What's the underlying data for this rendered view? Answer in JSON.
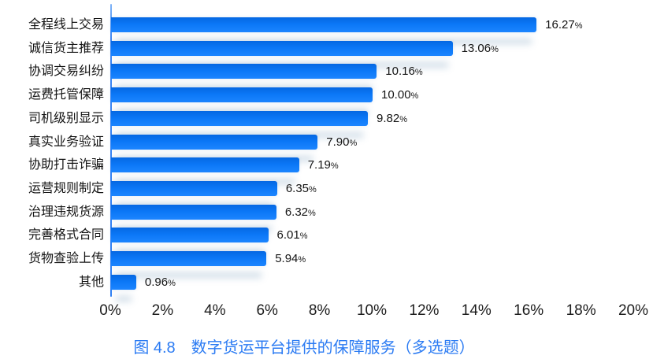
{
  "chart_data": {
    "type": "bar",
    "orientation": "horizontal",
    "title": "图 4.8　数字货运平台提供的保障服务（多选题）",
    "categories": [
      "全程线上交易",
      "诚信货主推荐",
      "协调交易纠纷",
      "运费托管保障",
      "司机级别显示",
      "真实业务验证",
      "协助打击诈骗",
      "运营规则制定",
      "治理违规货源",
      "完善格式合同",
      "货物查验上传",
      "其他"
    ],
    "values": [
      16.27,
      13.06,
      10.16,
      10.0,
      9.82,
      7.9,
      7.19,
      6.35,
      6.32,
      6.01,
      5.94,
      0.96
    ],
    "value_labels": [
      "16.27",
      "13.06",
      "10.16",
      "10.00",
      "9.82",
      "7.90",
      "7.19",
      "6.35",
      "6.32",
      "6.01",
      "5.94",
      "0.96"
    ],
    "unit": "%",
    "x_ticks": [
      "0%",
      "2%",
      "4%",
      "6%",
      "8%",
      "10%",
      "12%",
      "14%",
      "16%",
      "18%",
      "20%"
    ],
    "xlim": [
      0,
      20
    ],
    "grid": "off",
    "legend": "none",
    "colors": {
      "bar": "#0b77f6",
      "axis_line": "#3d86f3",
      "category_text": "#141414",
      "value_text": "#141414",
      "tick_text": "#1c1c1c",
      "title_text": "#2b7bf3"
    }
  }
}
